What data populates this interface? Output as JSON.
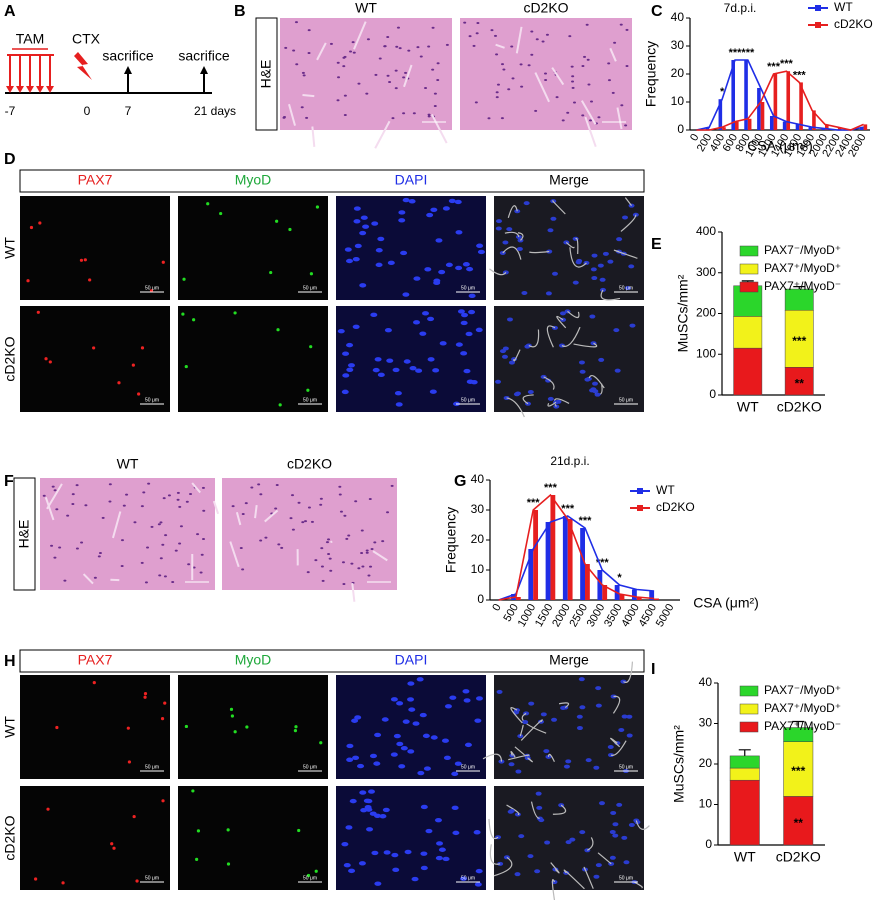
{
  "panel_letters": [
    "A",
    "B",
    "C",
    "D",
    "E",
    "F",
    "G",
    "H",
    "I"
  ],
  "timeline": {
    "treatments": [
      "TAM",
      "CTX"
    ],
    "events": [
      "sacrifice",
      "sacrifice"
    ],
    "days": [
      "-7",
      "0",
      "7",
      "21 days"
    ]
  },
  "he": {
    "side_label": "H&E",
    "columns": [
      "WT",
      "cD2KO"
    ]
  },
  "fluorescence": {
    "columns": [
      "PAX7",
      "MyoD",
      "DAPI",
      "Merge"
    ],
    "rows": [
      "WT",
      "cD2KO"
    ],
    "scale_bar": "50 μm"
  },
  "chart_data": [
    {
      "type": "barline",
      "title": "7d.p.i.",
      "x_label": "CSA (μm²)",
      "y_label": "Frequency",
      "categories": [
        "0",
        "200",
        "400",
        "600",
        "800",
        "1000",
        "1200",
        "1400",
        "1600",
        "1800",
        "2000",
        "2200",
        "2400",
        "2600"
      ],
      "series": [
        {
          "name": "WT",
          "color": "#1f2ee6",
          "values": [
            0,
            1,
            11,
            25,
            25,
            15,
            5,
            3,
            2,
            1,
            0.5,
            0,
            0,
            1
          ]
        },
        {
          "name": "cD2KO",
          "color": "#e61f1f",
          "values": [
            0,
            0,
            1,
            3,
            4,
            10,
            20,
            21,
            17,
            7,
            2,
            1,
            0,
            2
          ]
        }
      ],
      "significance": [
        null,
        null,
        "*",
        "***",
        "***",
        null,
        "***",
        "***",
        "***",
        null,
        null,
        null,
        null,
        null
      ],
      "ylim": [
        0,
        40
      ],
      "yticks": [
        0,
        10,
        20,
        30,
        40
      ],
      "legend": "upper right"
    },
    {
      "type": "stacked",
      "y_label": "MuSCs/mm²",
      "categories": [
        "WT",
        "cD2KO"
      ],
      "series": [
        {
          "name": "PAX7⁺/MyoD⁻",
          "color": "#e8191c",
          "values": [
            115,
            68
          ],
          "errors": [
            8,
            8
          ],
          "significance": [
            null,
            "**"
          ]
        },
        {
          "name": "PAX7⁺/MyoD⁺",
          "color": "#f2f21a",
          "values": [
            78,
            140
          ],
          "errors": [
            15,
            8
          ],
          "significance": [
            null,
            "***"
          ]
        },
        {
          "name": "PAX7⁻/MyoD⁺",
          "color": "#2bd62b",
          "values": [
            75,
            52
          ],
          "errors": [
            12,
            6
          ]
        }
      ],
      "ylim": [
        0,
        400
      ],
      "yticks": [
        0,
        100,
        200,
        300,
        400
      ],
      "legend": "top"
    },
    {
      "type": "barline",
      "title": "21d.p.i.",
      "x_label": "CSA (μm²)",
      "y_label": "Frequency",
      "categories": [
        "0",
        "500",
        "1000",
        "1500",
        "2000",
        "2500",
        "3000",
        "3500",
        "4000",
        "4500",
        "5000"
      ],
      "series": [
        {
          "name": "WT",
          "color": "#1f2ee6",
          "values": [
            0,
            2,
            17,
            26,
            28,
            24,
            10,
            5,
            3.5,
            3,
            null
          ]
        },
        {
          "name": "cD2KO",
          "color": "#e61f1f",
          "values": [
            0,
            1,
            30,
            35,
            27,
            12,
            5,
            2,
            1,
            0.5,
            null
          ]
        }
      ],
      "significance": [
        null,
        null,
        "***",
        "***",
        "***",
        "***",
        "***",
        "*",
        null,
        null,
        null
      ],
      "ylim": [
        0,
        40
      ],
      "yticks": [
        0,
        10,
        20,
        30,
        40
      ],
      "legend": "upper right"
    },
    {
      "type": "stacked",
      "y_label": "MuSCs/mm²",
      "categories": [
        "WT",
        "cD2KO"
      ],
      "series": [
        {
          "name": "PAX7⁺/MyoD⁻",
          "color": "#e8191c",
          "values": [
            16,
            12
          ],
          "errors": [
            1,
            1.5
          ],
          "significance": [
            null,
            "**"
          ]
        },
        {
          "name": "PAX7⁺/MyoD⁺",
          "color": "#f2f21a",
          "values": [
            3,
            13.5
          ],
          "errors": [
            1,
            1.5
          ],
          "significance": [
            null,
            "***"
          ]
        },
        {
          "name": "PAX7⁻/MyoD⁺",
          "color": "#2bd62b",
          "values": [
            3,
            3.5
          ],
          "errors": [
            1.5,
            1.5
          ]
        }
      ],
      "ylim": [
        0,
        40
      ],
      "yticks": [
        0,
        10,
        20,
        30,
        40
      ],
      "legend": "top"
    }
  ]
}
